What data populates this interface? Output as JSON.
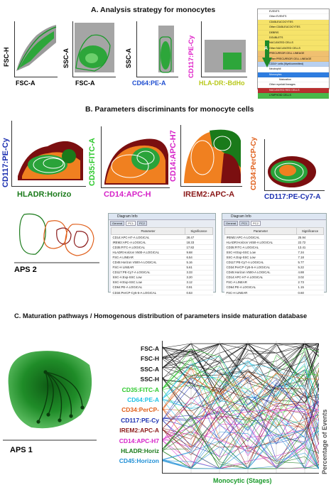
{
  "section_a_title": "A. Analysis strategy for monocytes",
  "section_b_title": "B. Parameters discriminants for monocyte cells",
  "section_c_title": "C. Maturation pathways / Homogenous distribution of parameters inside maturation database",
  "panel_a": {
    "plot1": {
      "x": "FSC-A",
      "y": "FSC-H"
    },
    "plot2": {
      "x": "FSC-A",
      "y": "SSC-A"
    },
    "plot3": {
      "x": "CD64:PE-A",
      "y": "SSC-A"
    },
    "plot4": {
      "x": "HLA-DR:-BdHo",
      "y": "CD117:PE-Cy"
    },
    "gate_arrow_label": "A",
    "gate_rows": [
      "EVENTS",
      "Other EVENTS",
      "CD45LEUCOCYTES",
      "Other CD45LEUCOCYTES",
      "DEBRIS",
      "DOUBLETS",
      "NUCLEATED CELLS",
      "Other NUCLEATED CELLS",
      "PRECURSOR CELL LINEAGE",
      "Other PRECURSOR CELL LINEAGE",
      "CD34+ cells (Myel/committed)",
      "Neutrophil",
      "Monocytes",
      "Maturation",
      "Other myeloid lineages",
      "NUCLEATED RED CELLS",
      "LYMPHOID CELLS"
    ],
    "colors": {
      "green": "#1a9a2a",
      "blue_label": "#1f4ed0",
      "magenta_label": "#e023c9",
      "olive_label": "#b8c81a"
    }
  },
  "panel_b": {
    "plot1": {
      "x": "HLADR:Horizo",
      "y": "CD117:PE-Cy"
    },
    "plot2": {
      "x": "CD14:APC-H",
      "y": "CD35:FITC-A"
    },
    "plot3": {
      "x": "IREM2:APC-A",
      "y": "CD14:APC-H7"
    },
    "plot4": {
      "x": "CD117:PE-Cy7-A",
      "y": "CD34:PerCP-Cy"
    },
    "aps_label": "APS 2",
    "diagram_1": {
      "title": "Diagram Info",
      "tabs": [
        "General",
        "PC1",
        "PC2"
      ],
      "active_tab": "PC1",
      "columns": [
        "Parameter",
        "Significance"
      ],
      "rows": [
        [
          "CD14:APC-H7-A LOGICAL",
          "28.47"
        ],
        [
          "IREM2:APC-A LOGICAL",
          "18.33"
        ],
        [
          "CD35:FITC-A LOGICAL",
          "17.82"
        ],
        [
          "HLADR:Horizon V500-A LOGICAL",
          "9.68"
        ],
        [
          "FSC-A LINEAR",
          "6.54"
        ],
        [
          "CD45:Horizon V500-A LOGICAL",
          "5.16"
        ],
        [
          "FSC-H LINEAR",
          "5.61"
        ],
        [
          "CD117:PE-Cy7-A LOGICAL",
          "3.33"
        ],
        [
          "SSC-A:Exp-SSC Low",
          "3.20"
        ],
        [
          "SSC-H:Exp-SSC Low",
          "3.12"
        ],
        [
          "CD64:PE-A LOGICAL",
          "0.91"
        ],
        [
          "CD34:PerCP-Cy5-5-A LOGICAL",
          "0.53"
        ]
      ]
    },
    "diagram_2": {
      "title": "Diagram Info",
      "tabs": [
        "General",
        "PC1",
        "PC2"
      ],
      "active_tab": "PC2",
      "columns": [
        "Parameter",
        "Significance"
      ],
      "rows": [
        [
          "IREM2:APC-A LOGICAL",
          "25.94"
        ],
        [
          "HLADR:Horizon V450-A LOGICAL",
          "22.72"
        ],
        [
          "CD35:FITC-A LOGICAL",
          "13.41"
        ],
        [
          "SSC-H:Exp-SSC Low",
          "7.34"
        ],
        [
          "SSC-A:Exp-SSC Low",
          "7.18"
        ],
        [
          "CD117:PE-Cy7-A LOGICAL",
          "5.77"
        ],
        [
          "CD34:PerCP-Cy5-5-A LOGICAL",
          "5.22"
        ],
        [
          "CD45:Horizon V500-A LOGICAL",
          "4.88"
        ],
        [
          "CD14:APC-H7-A LOGICAL",
          "3.02"
        ],
        [
          "FSC-A LINEAR",
          "2.73"
        ],
        [
          "CD64:PE-A LOGICAL",
          "1.15"
        ],
        [
          "FSC-H LINEAR",
          "0.60"
        ]
      ]
    }
  },
  "panel_c": {
    "aps_label": "APS 1",
    "xlabel": "Monocytic (Stages)",
    "ylabel": "Percentage of Events",
    "parameters": [
      {
        "label": "FSC-A",
        "color": "#111111"
      },
      {
        "label": "FSC-H",
        "color": "#111111"
      },
      {
        "label": "SSC-A",
        "color": "#111111"
      },
      {
        "label": "SSC-H",
        "color": "#111111"
      },
      {
        "label": "CD35:FITC-A",
        "color": "#2ec92e"
      },
      {
        "label": "CD64:PE-A",
        "color": "#22c2e6"
      },
      {
        "label": "CD34:PerCP-",
        "color": "#e0601c"
      },
      {
        "label": "CD117:PE-Cy",
        "color": "#1b2fb0"
      },
      {
        "label": "IREM2:APC-A",
        "color": "#8b1a1a"
      },
      {
        "label": "CD14:APC-H7",
        "color": "#d623c8"
      },
      {
        "label": "HLADR:Horiz",
        "color": "#1a7a1a"
      },
      {
        "label": "CD45:Horizon",
        "color": "#1f8fd6"
      }
    ]
  }
}
